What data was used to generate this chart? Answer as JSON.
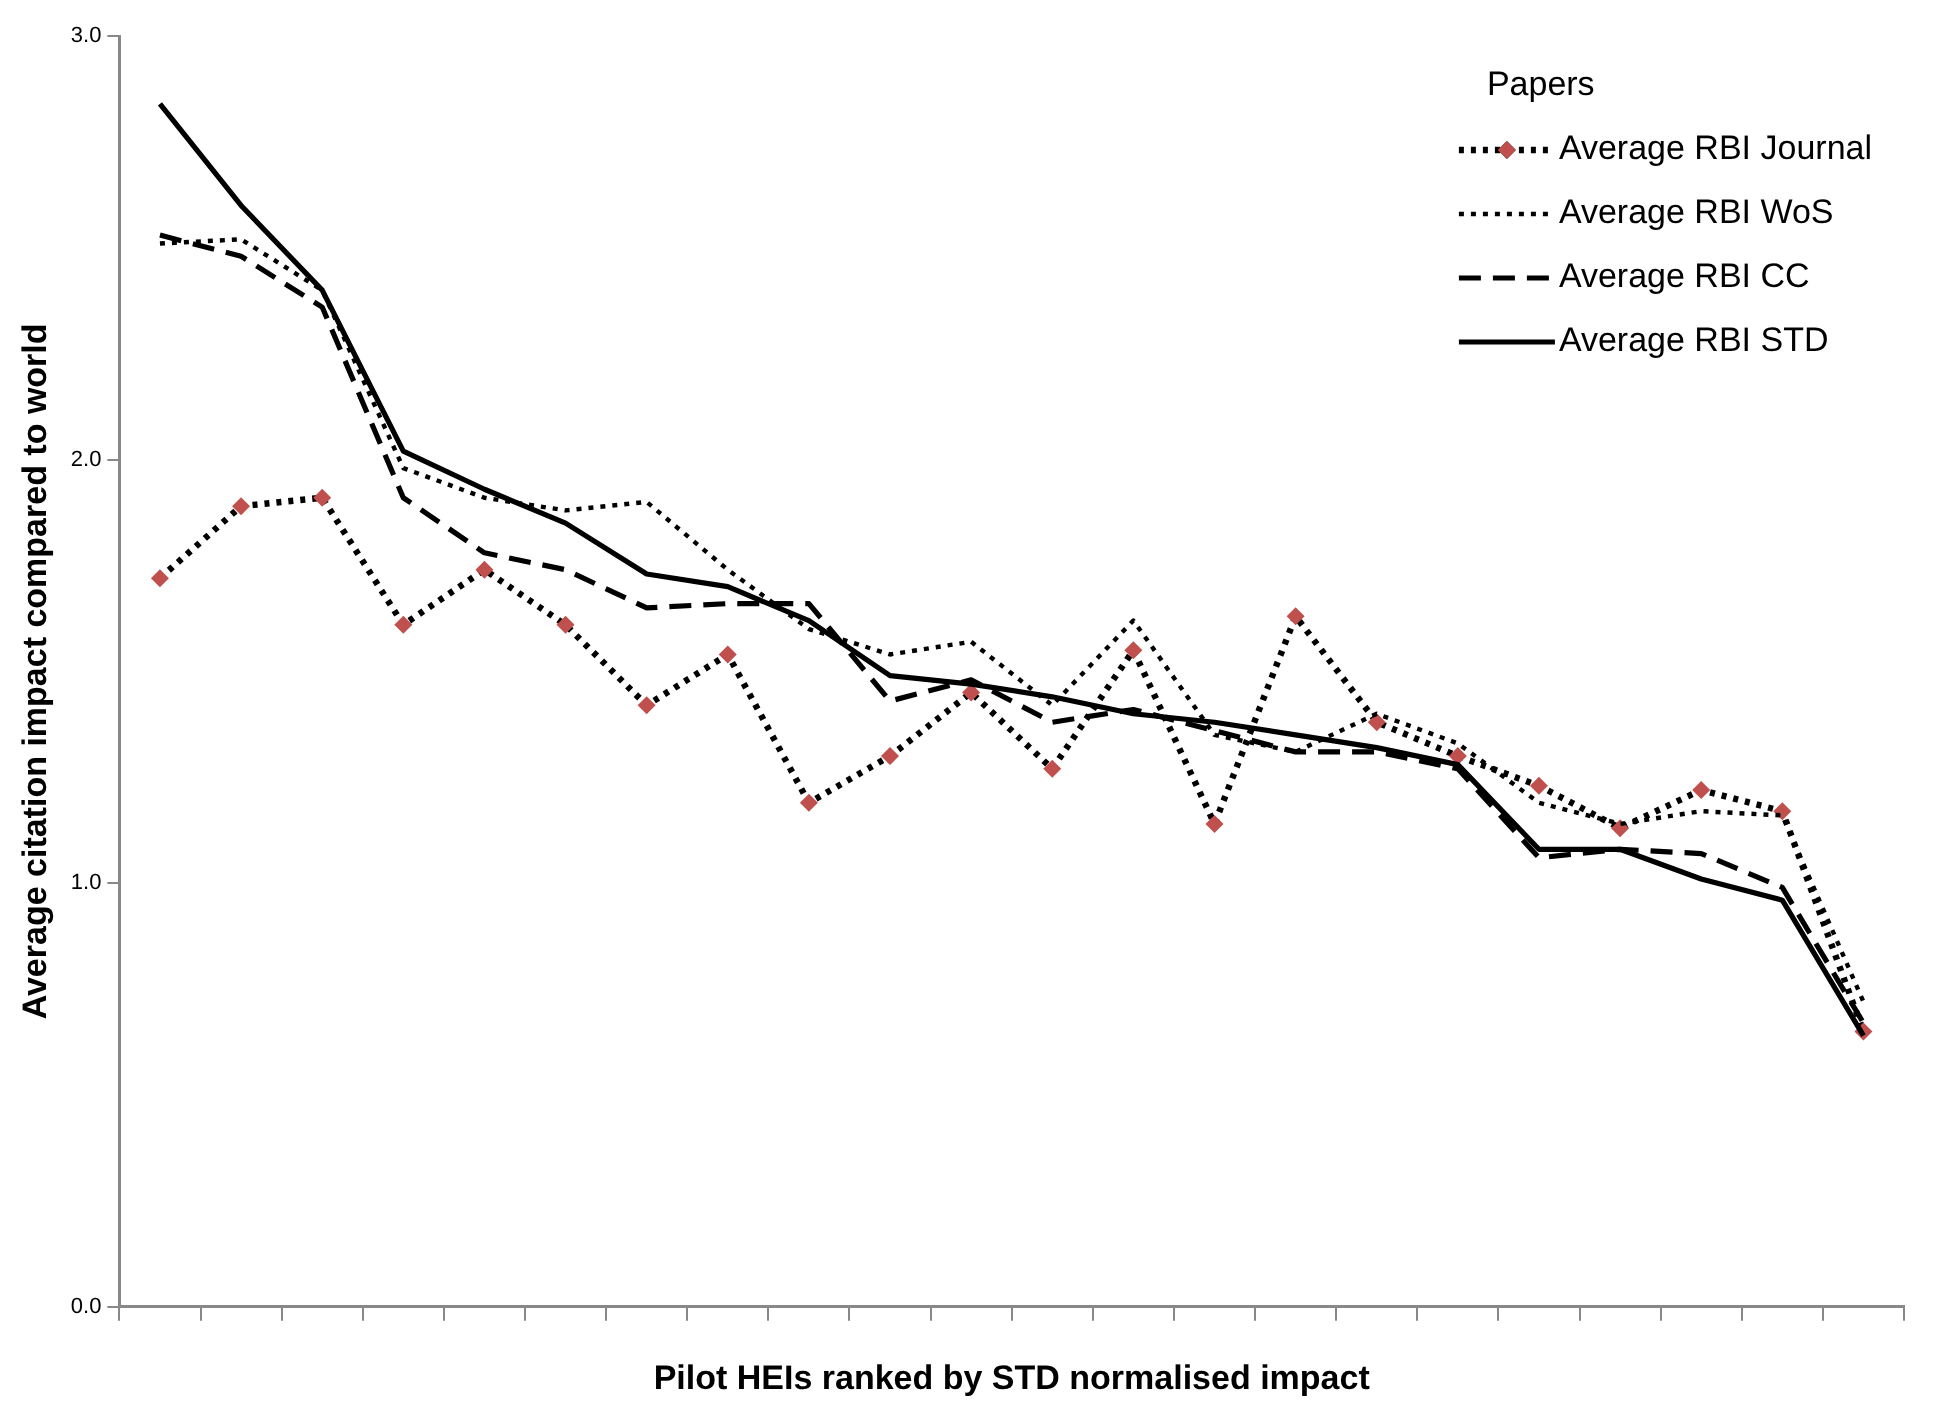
{
  "chart_data": {
    "type": "line",
    "xlabel": "Pilot HEIs ranked by STD normalised impact",
    "ylabel": "Average citation impact compared to world",
    "legend_title": "Papers",
    "categories": [
      null,
      null,
      null,
      null,
      null,
      null,
      null,
      null,
      null,
      null,
      null,
      null,
      null,
      null,
      null,
      null,
      null,
      null,
      null,
      null,
      null,
      null
    ],
    "series": [
      {
        "name": "Average RBI Journal",
        "color": "#000000",
        "marker": "diamond",
        "line_style": "dotted",
        "colors": [
          "#c0504d",
          "#c0504d",
          "#c0504d",
          "#c0504d",
          "#c0504d",
          "#c0504d",
          "#c0504d",
          "#c0504d",
          "#c0504d",
          "#c0504d",
          "#c0504d",
          "#c0504d",
          "#c0504d",
          "#c0504d",
          "#c0504d",
          "#c0504d",
          "#c0504d",
          "#c0504d",
          "#c0504d",
          "#c0504d",
          "#c0504d",
          "#c0504d"
        ],
        "values": [
          1.72,
          1.89,
          1.91,
          1.61,
          1.74,
          1.61,
          1.42,
          1.54,
          1.19,
          1.3,
          1.45,
          1.27,
          1.55,
          1.14,
          1.63,
          1.38,
          1.3,
          1.23,
          1.13,
          1.22,
          1.17,
          0.65
        ]
      },
      {
        "name": "Average RBI WoS",
        "color": "#000000",
        "marker": "none",
        "line_style": "dotted",
        "values": [
          2.51,
          2.52,
          2.4,
          1.98,
          1.91,
          1.88,
          1.9,
          1.74,
          1.6,
          1.54,
          1.57,
          1.42,
          1.62,
          1.35,
          1.31,
          1.4,
          1.33,
          1.19,
          1.14,
          1.17,
          1.16,
          0.72
        ]
      },
      {
        "name": "Average RBI CC",
        "color": "#000000",
        "marker": "none",
        "line_style": "dashed",
        "values": [
          2.53,
          2.48,
          2.36,
          1.91,
          1.78,
          1.74,
          1.65,
          1.66,
          1.66,
          1.43,
          1.48,
          1.38,
          1.41,
          1.36,
          1.31,
          1.31,
          1.27,
          1.06,
          1.08,
          1.07,
          0.99,
          0.67
        ]
      },
      {
        "name": "Average RBI STD",
        "color": "#000000",
        "marker": "none",
        "line_style": "solid",
        "values": [
          2.84,
          2.6,
          2.4,
          2.02,
          1.93,
          1.85,
          1.73,
          1.7,
          1.62,
          1.49,
          1.47,
          1.44,
          1.4,
          1.38,
          1.35,
          1.32,
          1.28,
          1.08,
          1.08,
          1.01,
          0.96,
          0.64
        ]
      }
    ],
    "ylim": [
      0,
      3
    ],
    "yticks": [
      {
        "value": 0,
        "label": "0.0"
      },
      {
        "value": 1,
        "label": "1.0"
      },
      {
        "value": 2,
        "label": "2.0"
      },
      {
        "value": 3,
        "label": "3.0"
      }
    ],
    "grid": false,
    "legend": "top right"
  }
}
